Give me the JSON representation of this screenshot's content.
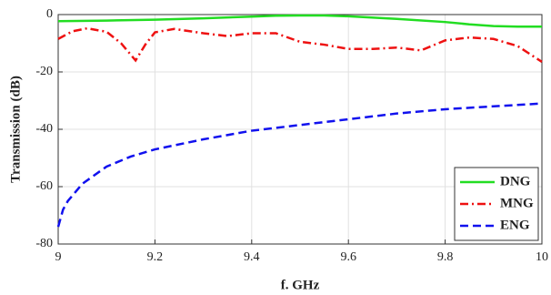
{
  "chart_data": {
    "type": "line",
    "x_label": "f. GHz",
    "y_label": "Transmission (dB)",
    "xlim": [
      9,
      10
    ],
    "xticks": [
      9,
      9.2,
      9.4,
      9.6,
      9.8,
      10
    ],
    "ylim": [
      -80,
      0
    ],
    "yticks": [
      -80,
      -60,
      -40,
      -20,
      0
    ],
    "grid": true,
    "legend": "lower right",
    "series": [
      {
        "name": "DNG",
        "color": "#22dd22",
        "dash": "solid",
        "x": [
          9,
          9.1,
          9.2,
          9.3,
          9.4,
          9.45,
          9.5,
          9.55,
          9.6,
          9.7,
          9.8,
          9.85,
          9.9,
          9.95,
          10
        ],
        "values": [
          -2.3,
          -2.1,
          -1.8,
          -1.3,
          -0.7,
          -0.4,
          -0.3,
          -0.3,
          -0.6,
          -1.5,
          -2.6,
          -3.4,
          -4,
          -4.2,
          -4.2
        ]
      },
      {
        "name": "MNG",
        "color": "#ee1111",
        "dash": "dashdot",
        "x": [
          9,
          9.03,
          9.06,
          9.1,
          9.13,
          9.16,
          9.18,
          9.2,
          9.24,
          9.3,
          9.35,
          9.4,
          9.45,
          9.5,
          9.55,
          9.6,
          9.65,
          9.7,
          9.75,
          9.8,
          9.85,
          9.9,
          9.95,
          10
        ],
        "values": [
          -8.5,
          -5.8,
          -4.8,
          -6,
          -10,
          -16,
          -10.5,
          -6.2,
          -5,
          -6.5,
          -7.5,
          -6.5,
          -6.5,
          -9.5,
          -10.5,
          -12,
          -12,
          -11.5,
          -12.5,
          -9,
          -8,
          -8.5,
          -11,
          -16.5
        ]
      },
      {
        "name": "ENG",
        "color": "#1111ee",
        "dash": "dashed",
        "x": [
          9,
          9.01,
          9.02,
          9.05,
          9.1,
          9.15,
          9.2,
          9.3,
          9.4,
          9.5,
          9.6,
          9.7,
          9.8,
          9.9,
          10
        ],
        "values": [
          -74,
          -68,
          -65,
          -59,
          -53,
          -49.5,
          -47,
          -43.5,
          -40.5,
          -38.5,
          -36.5,
          -34.5,
          -33,
          -32,
          -31
        ]
      }
    ]
  }
}
